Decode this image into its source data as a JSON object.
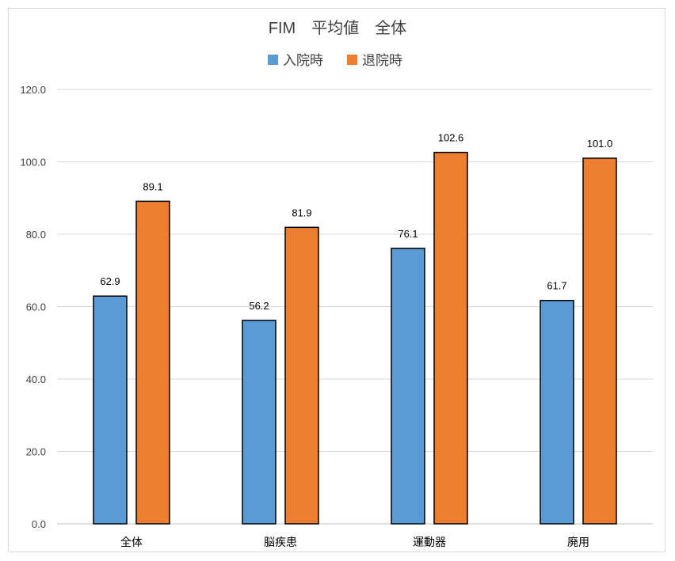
{
  "chart_data": {
    "type": "bar",
    "title": "FIM　平均値　全体",
    "categories": [
      "全体",
      "脳疾患",
      "運動器",
      "廃用"
    ],
    "series": [
      {
        "name": "入院時",
        "values": [
          62.9,
          56.2,
          76.1,
          61.7
        ],
        "color": "#5b9bd5"
      },
      {
        "name": "退院時",
        "values": [
          89.1,
          81.9,
          102.6,
          101.0
        ],
        "color": "#ed7d31"
      }
    ],
    "ylim": [
      0,
      120
    ],
    "yticks": [
      "0.0",
      "20.0",
      "40.0",
      "60.0",
      "80.0",
      "100.0",
      "120.0"
    ],
    "grid": true,
    "legend_position": "top",
    "data_labels": [
      [
        "62.9",
        "56.2",
        "76.1",
        "61.7"
      ],
      [
        "89.1",
        "81.9",
        "102.6",
        "101.0"
      ]
    ]
  }
}
